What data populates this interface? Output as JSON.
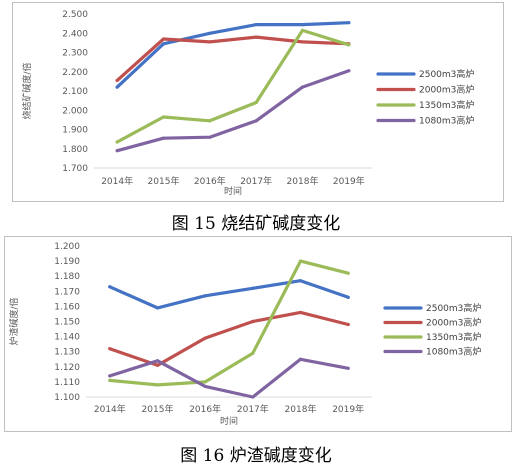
{
  "chart_data": [
    {
      "type": "line",
      "caption": "图 15   烧结矿碱度变化",
      "xlabel": "时间",
      "ylabel": "烧结矿碱度/倍",
      "categories": [
        "2014年",
        "2015年",
        "2016年",
        "2017年",
        "2018年",
        "2019年"
      ],
      "ylim": [
        1.7,
        2.5
      ],
      "ystep": 0.1,
      "ytick_labels": [
        "1.700",
        "1.800",
        "1.900",
        "2.000",
        "2.100",
        "2.200",
        "2.300",
        "2.400",
        "2.500"
      ],
      "grid": false,
      "legend_position": "right",
      "series": [
        {
          "name": "2500m3高炉",
          "color": "#4472C4",
          "values": [
            2.12,
            2.345,
            2.4,
            2.445,
            2.445,
            2.455
          ]
        },
        {
          "name": "2000m3高炉",
          "color": "#C0504D",
          "values": [
            2.155,
            2.37,
            2.355,
            2.38,
            2.355,
            2.345
          ]
        },
        {
          "name": "1350m3高炉",
          "color": "#9BBB59",
          "values": [
            1.835,
            1.965,
            1.945,
            2.04,
            2.415,
            2.34
          ]
        },
        {
          "name": "1080m3高炉",
          "color": "#8064A2",
          "values": [
            1.79,
            1.855,
            1.86,
            1.945,
            2.12,
            2.205
          ]
        }
      ]
    },
    {
      "type": "line",
      "caption": "图 16   炉渣碱度变化",
      "xlabel": "时间",
      "ylabel": "炉渣碱度/倍",
      "categories": [
        "2014年",
        "2015年",
        "2016年",
        "2017年",
        "2018年",
        "2019年"
      ],
      "ylim": [
        1.1,
        1.2
      ],
      "ystep": 0.01,
      "ytick_labels": [
        "1.100",
        "1.110",
        "1.120",
        "1.130",
        "1.140",
        "1.150",
        "1.160",
        "1.170",
        "1.180",
        "1.190",
        "1.200"
      ],
      "grid": false,
      "legend_position": "right",
      "series": [
        {
          "name": "2500m3高炉",
          "color": "#4472C4",
          "values": [
            1.173,
            1.159,
            1.167,
            1.172,
            1.177,
            1.166
          ]
        },
        {
          "name": "2000m3高炉",
          "color": "#C0504D",
          "values": [
            1.132,
            1.121,
            1.139,
            1.15,
            1.156,
            1.148
          ]
        },
        {
          "name": "1350m3高炉",
          "color": "#9BBB59",
          "values": [
            1.111,
            1.108,
            1.11,
            1.129,
            1.19,
            1.182
          ]
        },
        {
          "name": "1080m3高炉",
          "color": "#8064A2",
          "values": [
            1.114,
            1.124,
            1.107,
            1.1,
            1.125,
            1.119
          ]
        }
      ]
    }
  ]
}
